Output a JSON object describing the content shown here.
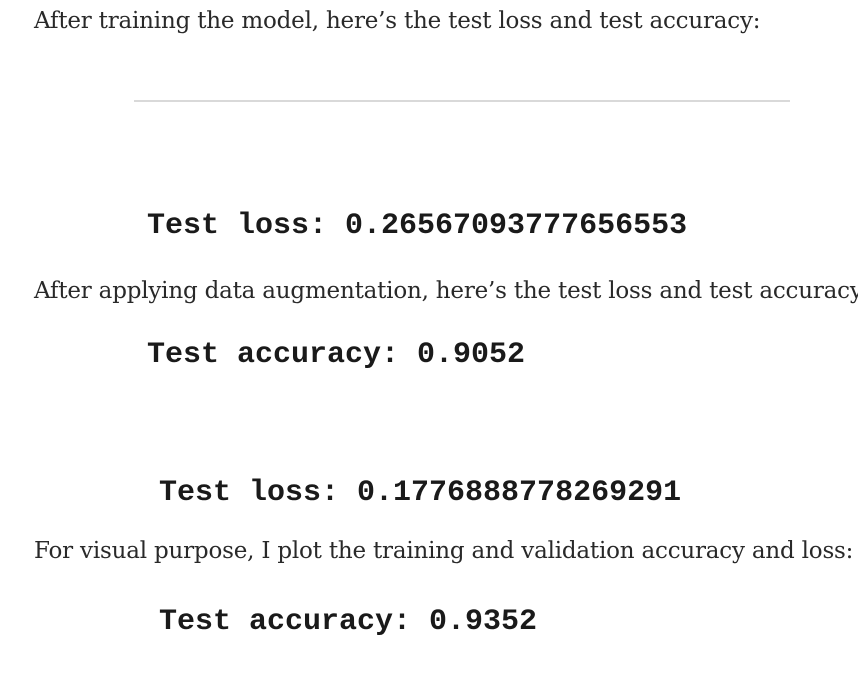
{
  "paragraphs": {
    "intro": "After training the model, here’s the test loss and test accuracy:",
    "augmentation": "After applying data augmentation, here’s the test loss and test accuracy:",
    "visual": "For visual purpose, I plot the training and validation accuracy and loss:"
  },
  "results_before": {
    "loss_line": "Test loss: 0.26567093777656553",
    "accuracy_line": "Test accuracy: 0.9052"
  },
  "results_after": {
    "loss_line": "Test loss: 0.1776888778269291",
    "accuracy_line": "Test accuracy: 0.9352"
  }
}
